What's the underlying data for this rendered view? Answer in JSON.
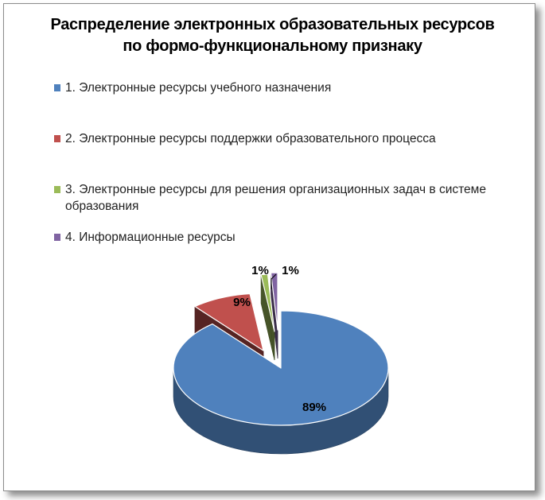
{
  "chart_data": {
    "type": "pie",
    "title": "Распределение электронных образовательных ресурсов\nпо формо-функциональному признаку",
    "legend_position": "top",
    "series": [
      {
        "name": "1. Электронные ресурсы учебного назначения",
        "value": 89,
        "label": "89%",
        "color": "#4f81bd"
      },
      {
        "name": "2. Электронные ресурсы поддержки образовательного процесса",
        "value": 9,
        "label": "9%",
        "color": "#c0504d"
      },
      {
        "name": "3. Электронные ресурсы для решения организационных задач в системе образования",
        "value": 1,
        "label": "1%",
        "color": "#9bbb59"
      },
      {
        "name": "4. Информационные ресурсы",
        "value": 1,
        "label": "1%",
        "color": "#8064a2"
      }
    ]
  }
}
